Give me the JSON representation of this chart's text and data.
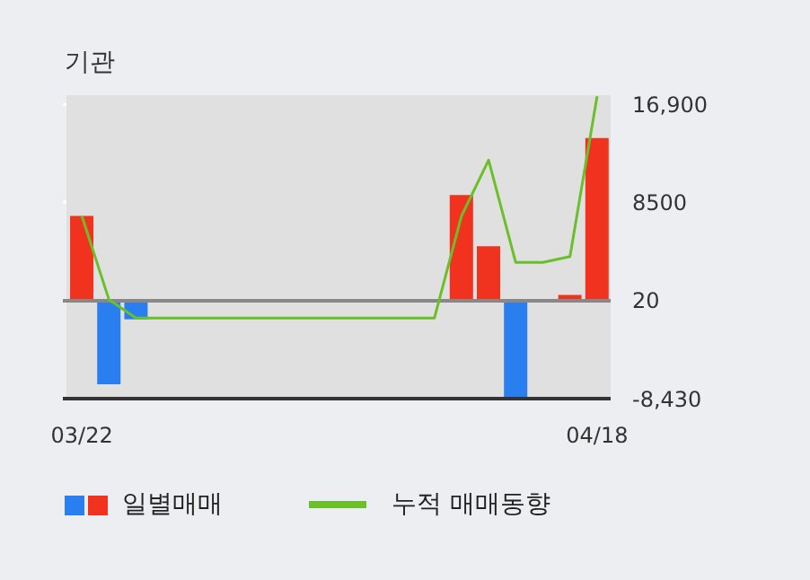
{
  "chart_data": {
    "type": "bar",
    "title": "기관",
    "categories": [
      "03/22",
      null,
      null,
      null,
      null,
      null,
      null,
      null,
      null,
      null,
      null,
      null,
      null,
      null,
      null,
      null,
      null,
      null,
      null,
      "04/18"
    ],
    "series": [
      {
        "name": "일별매매",
        "colors": [
          "#f0321e",
          "#2a7ff0",
          "#2a7ff0",
          "#f0321e",
          "#f0321e",
          "#f0321e",
          "#f0321e",
          "#f0321e",
          "#f0321e",
          "#f0321e",
          "#f0321e",
          "#f0321e",
          "#f0321e",
          "#f0321e",
          "#f0321e",
          "#f0321e",
          "#2a7ff0",
          "#f0321e",
          "#f0321e",
          "#f0321e"
        ],
        "values": [
          7300,
          -7200,
          -1600,
          0,
          0,
          0,
          0,
          0,
          0,
          0,
          0,
          0,
          0,
          0,
          9100,
          4700,
          -8400,
          0,
          500,
          14000
        ]
      },
      {
        "name": "누적 매매동향",
        "type": "line",
        "color": "#6abf2a",
        "values": [
          7300,
          100,
          -1500,
          -1500,
          -1500,
          -1500,
          -1500,
          -1500,
          -1500,
          -1500,
          -1500,
          -1500,
          -1500,
          -1500,
          7300,
          12100,
          3300,
          3300,
          3800,
          17600
        ]
      }
    ],
    "ylim": [
      -8430,
      17700
    ],
    "yticks": [
      {
        "value": 16900,
        "label": "16,900"
      },
      8500,
      20,
      {
        "value": -8430,
        "label": "-8,430"
      }
    ],
    "grid": true,
    "legend": "bottom",
    "marker": "none"
  }
}
